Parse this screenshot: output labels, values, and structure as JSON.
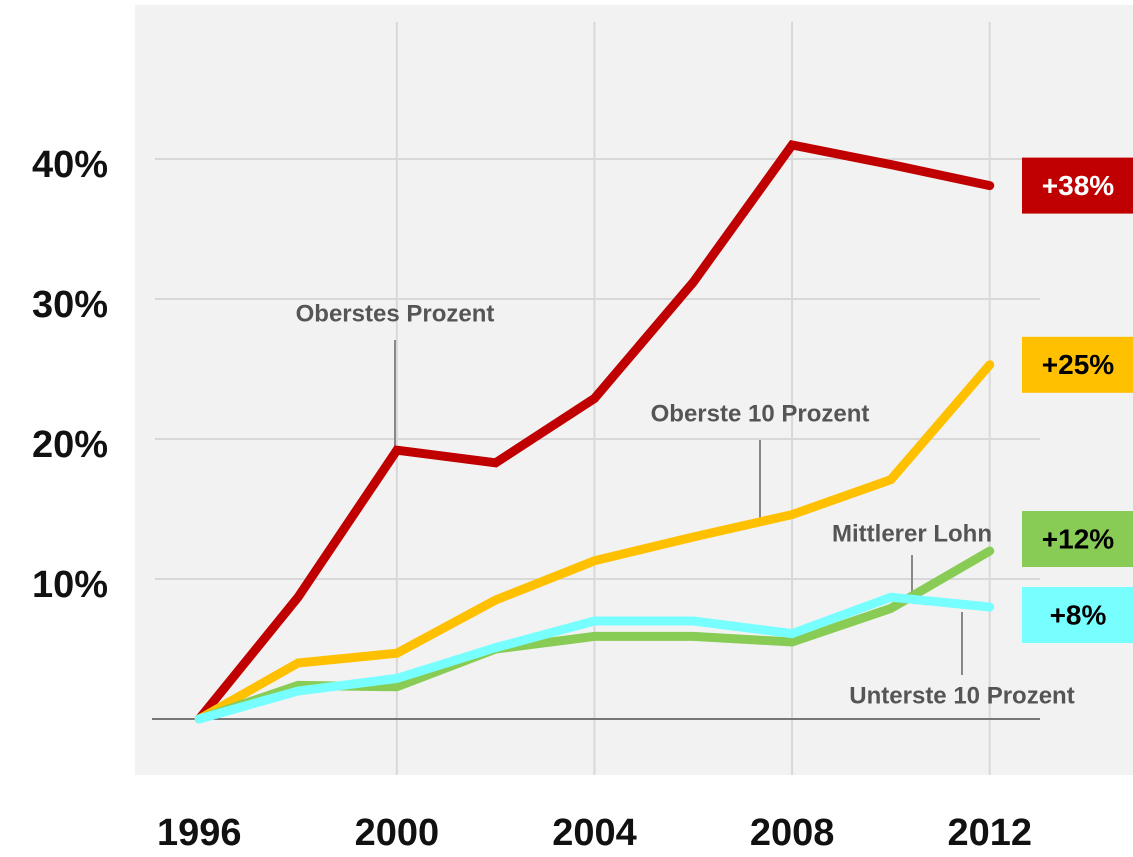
{
  "chart_data": {
    "type": "line",
    "x": [
      1996,
      1998,
      2000,
      2002,
      2004,
      2006,
      2008,
      2010,
      2012
    ],
    "xlim": [
      1994.7,
      2014.9
    ],
    "xticks": [
      1996,
      2000,
      2004,
      2008,
      2012
    ],
    "ylim": [
      -4,
      51
    ],
    "yticks": [
      {
        "value": 10,
        "label": "10%"
      },
      {
        "value": 20,
        "label": "20%"
      },
      {
        "value": 30,
        "label": "30%"
      },
      {
        "value": 40,
        "label": "40%"
      }
    ],
    "grid": true,
    "series": [
      {
        "color": "#c00000",
        "values": [
          0,
          8.7,
          19.2,
          18.3,
          22.9,
          31.2,
          41,
          39.6,
          38.1
        ],
        "end_label": "+38%"
      },
      {
        "color": "#ffc000",
        "values": [
          0,
          4.0,
          4.7,
          8.5,
          11.3,
          13.0,
          14.6,
          17.1,
          25.3
        ],
        "end_label": "+25%"
      },
      {
        "color": "#88cc55",
        "values": [
          0,
          2.4,
          2.3,
          5.0,
          5.9,
          5.9,
          5.5,
          7.9,
          12.0
        ],
        "end_label": "+12%"
      },
      {
        "color": "#77ffff",
        "values": [
          0,
          2.0,
          2.9,
          5.1,
          7.0,
          7.0,
          6.1,
          8.7,
          8.0
        ],
        "end_label": "+8%"
      }
    ],
    "annotations": [
      "Oberstes Prozent",
      "Oberste 10 Prozent",
      "Mittlerer Lohn",
      "Unterste 10 Prozent"
    ]
  }
}
